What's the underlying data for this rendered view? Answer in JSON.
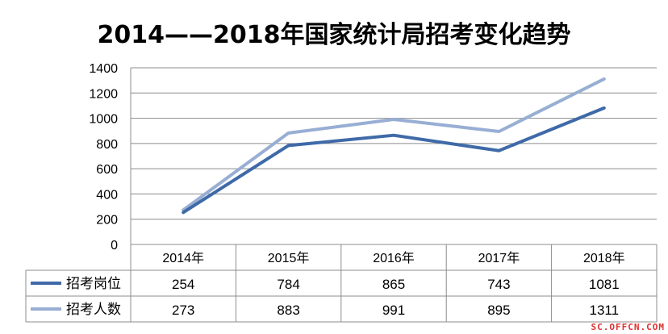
{
  "chart_data": {
    "type": "line",
    "title": "2014——2018年国家统计局招考变化趋势",
    "categories": [
      "2014年",
      "2015年",
      "2016年",
      "2017年",
      "2018年"
    ],
    "series": [
      {
        "name": "招考岗位",
        "values": [
          254,
          784,
          865,
          743,
          1081
        ],
        "color": "#3f6aa8"
      },
      {
        "name": "招考人数",
        "values": [
          273,
          883,
          991,
          895,
          1311
        ],
        "color": "#98aed4"
      }
    ],
    "y_ticks": [
      0,
      200,
      400,
      600,
      800,
      1000,
      1200,
      1400
    ],
    "ylim": [
      0,
      1400
    ],
    "grid": true,
    "legend": "data-table-below"
  },
  "watermark": "SC.OFFCN.COM"
}
